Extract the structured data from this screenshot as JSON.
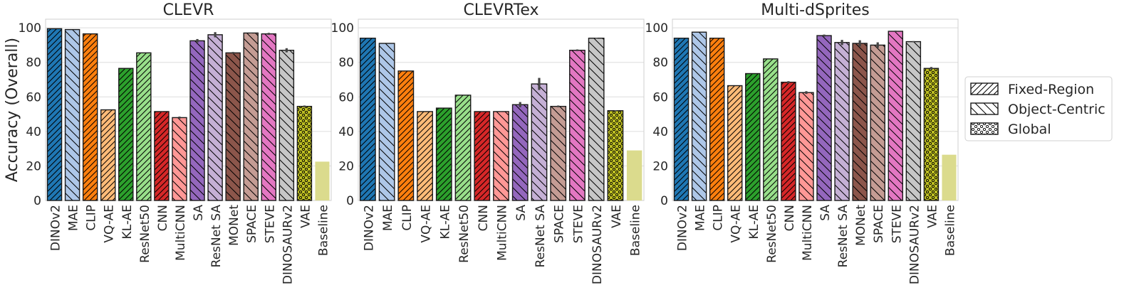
{
  "chart_data": [
    {
      "type": "bar",
      "title": "CLEVR",
      "ylabel": "Accuracy (Overall)",
      "ylim": [
        0,
        105
      ],
      "yticks": [
        0,
        20,
        40,
        60,
        80,
        100
      ],
      "grid": true,
      "categories": [
        "DINOv2",
        "MAE",
        "CLIP",
        "VQ-AE",
        "KL-AE",
        "ResNet50",
        "CNN",
        "MultiCNN",
        "SA",
        "ResNet SA",
        "MONet",
        "SPACE",
        "STEVE",
        "DINOSAURv2",
        "VAE",
        "Baseline"
      ],
      "values": [
        99.5,
        99.0,
        96.5,
        52.5,
        76.5,
        85.5,
        51.5,
        48.0,
        92.5,
        96.0,
        85.5,
        97.0,
        96.5,
        87.0,
        54.5,
        22.5
      ],
      "errors": [
        0,
        0,
        0,
        0,
        0,
        0,
        0.3,
        0.6,
        1.0,
        1.5,
        0.5,
        0.3,
        0.6,
        1.2,
        0.5,
        0
      ]
    },
    {
      "type": "bar",
      "title": "CLEVRTex",
      "ylim": [
        0,
        105
      ],
      "yticks": [
        0,
        20,
        40,
        60,
        80,
        100
      ],
      "grid": true,
      "categories": [
        "DINOv2",
        "MAE",
        "CLIP",
        "VQ-AE",
        "KL-AE",
        "ResNet50",
        "CNN",
        "MultiCNN",
        "SA",
        "ResNet SA",
        "SPACE",
        "STEVE",
        "DINOSAURv2",
        "VAE",
        "Baseline"
      ],
      "values": [
        94.0,
        91.0,
        75.0,
        51.5,
        53.5,
        61.0,
        51.5,
        51.5,
        55.5,
        67.5,
        54.5,
        87.0,
        94.0,
        52.0,
        29.0
      ],
      "errors": [
        0,
        0,
        0,
        0,
        0,
        0,
        0.3,
        0.3,
        1.5,
        3.5,
        0.5,
        0.5,
        0.3,
        0.3,
        0
      ]
    },
    {
      "type": "bar",
      "title": "Multi-dSprites",
      "ylim": [
        0,
        105
      ],
      "yticks": [
        0,
        20,
        40,
        60,
        80,
        100
      ],
      "grid": true,
      "categories": [
        "DINOv2",
        "MAE",
        "CLIP",
        "VQ-AE",
        "KL-AE",
        "ResNet50",
        "CNN",
        "MultiCNN",
        "SA",
        "ResNet SA",
        "MONet",
        "SPACE",
        "STEVE",
        "DINOSAURv2",
        "VAE",
        "Baseline"
      ],
      "values": [
        94.0,
        97.5,
        94.0,
        66.5,
        73.5,
        82.0,
        68.5,
        62.5,
        95.5,
        91.5,
        91.0,
        90.0,
        98.0,
        92.0,
        76.5,
        26.5
      ],
      "errors": [
        0,
        0,
        0,
        0,
        0,
        0,
        0.6,
        0.8,
        0.6,
        1.5,
        1.8,
        1.6,
        0.4,
        0.3,
        0.8,
        0
      ]
    }
  ],
  "legend": {
    "placement": "right",
    "entries": [
      {
        "label": "Fixed-Region",
        "pattern": "hatch-forward"
      },
      {
        "label": "Object-Centric",
        "pattern": "hatch-back"
      },
      {
        "label": "Global",
        "pattern": "dots"
      }
    ]
  },
  "method_styles": {
    "DINOv2": {
      "color": "#1f77b4",
      "pattern": "hatch-forward"
    },
    "MAE": {
      "color": "#aec7e8",
      "pattern": "hatch-back"
    },
    "CLIP": {
      "color": "#ff7f0e",
      "pattern": "hatch-forward"
    },
    "VQ-AE": {
      "color": "#ffbb78",
      "pattern": "hatch-forward"
    },
    "KL-AE": {
      "color": "#2ca02c",
      "pattern": "hatch-forward"
    },
    "ResNet50": {
      "color": "#98df8a",
      "pattern": "hatch-forward"
    },
    "CNN": {
      "color": "#d62728",
      "pattern": "hatch-forward"
    },
    "MultiCNN": {
      "color": "#ff9896",
      "pattern": "hatch-back"
    },
    "SA": {
      "color": "#9467bd",
      "pattern": "hatch-back"
    },
    "ResNet SA": {
      "color": "#c5b0d5",
      "pattern": "hatch-back"
    },
    "MONet": {
      "color": "#8c564b",
      "pattern": "hatch-back"
    },
    "SPACE": {
      "color": "#c49c94",
      "pattern": "hatch-back"
    },
    "STEVE": {
      "color": "#e377c2",
      "pattern": "hatch-back"
    },
    "DINOSAURv2": {
      "color": "#c7c7c7",
      "pattern": "hatch-back"
    },
    "VAE": {
      "color": "#bcbd22",
      "pattern": "dots"
    },
    "Baseline": {
      "color": "#dbdb8d",
      "pattern": "none"
    }
  }
}
